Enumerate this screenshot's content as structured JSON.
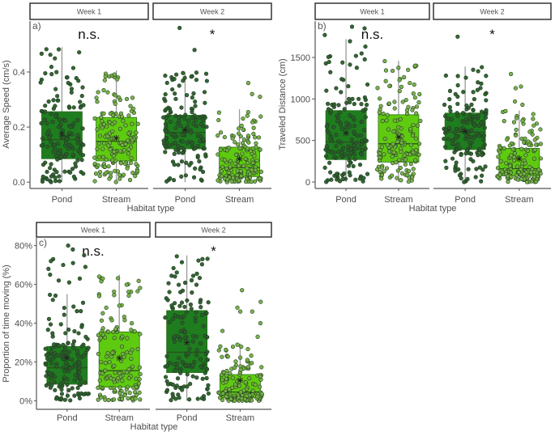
{
  "colors": {
    "pond_box": "#1f7d1f",
    "stream_box": "#5fcb10",
    "pond_point": "#2b5d2b",
    "stream_point": "#74b042",
    "point_edge": "#1e3a1e",
    "whisker": "#9a9a9a"
  },
  "chart_data": [
    {
      "type": "box",
      "panel_label": "a)",
      "xlabel": "Habitat type",
      "ylabel": "Average Speed (cm/s)",
      "ylim": [
        -0.02,
        0.585
      ],
      "yticks": [
        0.0,
        0.2,
        0.4
      ],
      "ytick_labels": [
        "0.0",
        "0.2",
        "0.4"
      ],
      "facets": [
        {
          "label": "Week 1",
          "annotation": "n.s.",
          "groups": [
            {
              "category": "Pond",
              "q1": 0.085,
              "median": 0.154,
              "q3": 0.256,
              "whisker_low": 0.0,
              "whisker_high": 0.49,
              "mean": 0.175,
              "outliers": []
            },
            {
              "category": "Stream",
              "q1": 0.077,
              "median": 0.148,
              "q3": 0.235,
              "whisker_low": 0.0,
              "whisker_high": 0.405,
              "mean": 0.16,
              "outliers": []
            }
          ]
        },
        {
          "label": "Week 2",
          "annotation": "*",
          "groups": [
            {
              "category": "Pond",
              "q1": 0.121,
              "median": 0.18,
              "q3": 0.243,
              "whisker_low": 0.0,
              "whisker_high": 0.398,
              "mean": 0.19,
              "outliers": [
                0.48,
                0.56
              ]
            },
            {
              "category": "Stream",
              "q1": 0.02,
              "median": 0.053,
              "q3": 0.127,
              "whisker_low": 0.0,
              "whisker_high": 0.265,
              "mean": 0.085,
              "outliers": [
                0.36,
                0.32,
                0.31
              ]
            }
          ]
        }
      ]
    },
    {
      "type": "box",
      "panel_label": "b)",
      "xlabel": "Habitat type",
      "ylabel": "Traveled Distance (cm)",
      "ylim": [
        -68,
        1938
      ],
      "yticks": [
        0,
        500,
        1000,
        1500
      ],
      "ytick_labels": [
        "0",
        "500",
        "1000",
        "1500"
      ],
      "facets": [
        {
          "label": "Week 1",
          "annotation": "n.s.",
          "groups": [
            {
              "category": "Pond",
              "q1": 270,
              "median": 480,
              "q3": 860,
              "whisker_low": 0,
              "whisker_high": 1720,
              "mean": 590,
              "outliers": [
                1870,
                1850,
                1770
              ]
            },
            {
              "category": "Stream",
              "q1": 240,
              "median": 460,
              "q3": 810,
              "whisker_low": 0,
              "whisker_high": 1460,
              "mean": 540,
              "outliers": []
            }
          ]
        },
        {
          "label": "Week 2",
          "annotation": "*",
          "groups": [
            {
              "category": "Pond",
              "q1": 390,
              "median": 600,
              "q3": 830,
              "whisker_low": 0,
              "whisker_high": 1390,
              "mean": 610,
              "outliers": [
                1750
              ]
            },
            {
              "category": "Stream",
              "q1": 75,
              "median": 160,
              "q3": 405,
              "whisker_low": 0,
              "whisker_high": 860,
              "mean": 280,
              "outliers": [
                1300,
                1150,
                1130,
                970,
                930
              ]
            }
          ]
        }
      ]
    },
    {
      "type": "box",
      "panel_label": "c)",
      "xlabel": "Habitat type",
      "ylabel": "Proportion of time moving (%)",
      "ylim": [
        -4,
        84
      ],
      "yticks": [
        0,
        20,
        40,
        60,
        80
      ],
      "ytick_labels": [
        "0%",
        "20%",
        "40%",
        "60%",
        "80%"
      ],
      "facets": [
        {
          "label": "Week 1",
          "annotation": "n.s.",
          "groups": [
            {
              "category": "Pond",
              "q1": 8.5,
              "median": 17,
              "q3": 28,
              "whisker_low": 0,
              "whisker_high": 55,
              "mean": 22,
              "outliers": [
                80,
                78,
                75,
                73,
                72,
                71,
                70,
                69,
                68,
                65,
                63,
                62,
                61
              ]
            },
            {
              "category": "Stream",
              "q1": 7,
              "median": 15.5,
              "q3": 35.5,
              "whisker_low": 0,
              "whisker_high": 65,
              "mean": 22,
              "outliers": []
            }
          ]
        },
        {
          "label": "Week 2",
          "annotation": "*",
          "groups": [
            {
              "category": "Pond",
              "q1": 14.5,
              "median": 25,
              "q3": 46.5,
              "whisker_low": 0,
              "whisker_high": 75,
              "mean": 30,
              "outliers": []
            },
            {
              "category": "Stream",
              "q1": 1.5,
              "median": 4.5,
              "q3": 13.5,
              "whisker_low": 0,
              "whisker_high": 29.5,
              "mean": 10.5,
              "outliers": [
                57,
                51,
                48,
                46,
                46,
                40,
                36,
                33
              ]
            }
          ]
        }
      ]
    }
  ]
}
